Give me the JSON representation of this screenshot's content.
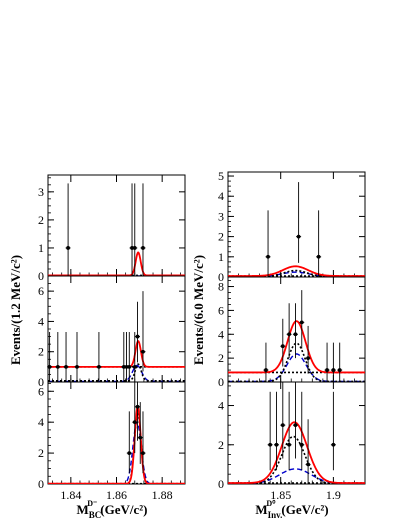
{
  "figure": {
    "ylabel_left": "Events/(1.2 MeV/c²)",
    "ylabel_right": "Events/(6.0 MeV/c²)",
    "xlabel_left": {
      "base": "M",
      "sub": "BC",
      "sup": "D⁻",
      "units": "(GeV/c²)"
    },
    "xlabel_right": {
      "base": "M",
      "sub": "Inv.",
      "sup": "D⁰",
      "units": "(GeV/c²)"
    },
    "colors": {
      "total_fit": "#ff0000",
      "component_1": "#000000",
      "component_2": "#0000cc",
      "background": "#000000",
      "data": "#000000"
    }
  },
  "chart_data": [
    {
      "type": "scatter",
      "column": "left",
      "row": 1,
      "xlim": [
        1.83,
        1.89
      ],
      "ylim": [
        0,
        3.6
      ],
      "xticks": [
        1.84,
        1.86,
        1.88
      ],
      "xticklabels": [],
      "yticks": [
        0,
        1,
        2,
        3
      ],
      "yticklabels": [
        "0",
        "1",
        "2",
        "3"
      ],
      "points": [
        {
          "x": 1.8388,
          "y": 1,
          "lo": 0,
          "hi": 3.3
        },
        {
          "x": 1.8668,
          "y": 1,
          "lo": 0,
          "hi": 3.3
        },
        {
          "x": 1.868,
          "y": 1,
          "lo": 0,
          "hi": 3.3
        },
        {
          "x": 1.8716,
          "y": 1,
          "lo": 0,
          "hi": 3.3
        }
      ],
      "curves": {
        "total": {
          "mean": 1.8695,
          "sigma": 0.0011,
          "amp": 0.82,
          "bg": 0.02
        },
        "signal_1": {
          "mean": 1.8695,
          "sigma": 0.0011,
          "amp": 0.0,
          "bg": 0.0
        },
        "signal_2": {
          "mean": 1.8695,
          "sigma": 0.0011,
          "amp": 0.0,
          "bg": 0.0
        }
      },
      "grid": false
    },
    {
      "type": "scatter",
      "column": "left",
      "row": 2,
      "xlim": [
        1.83,
        1.89
      ],
      "ylim": [
        0,
        7
      ],
      "xticks": [
        1.84,
        1.86,
        1.88
      ],
      "xticklabels": [],
      "yticks": [
        0,
        2,
        4,
        6
      ],
      "yticklabels": [
        "0",
        "2",
        "4",
        "6"
      ],
      "points": [
        {
          "x": 1.8307,
          "y": 1,
          "lo": 0,
          "hi": 3.3
        },
        {
          "x": 1.8343,
          "y": 1,
          "lo": 0,
          "hi": 3.3
        },
        {
          "x": 1.8379,
          "y": 1,
          "lo": 0,
          "hi": 3.3
        },
        {
          "x": 1.8427,
          "y": 1,
          "lo": 0,
          "hi": 3.3
        },
        {
          "x": 1.8523,
          "y": 1,
          "lo": 0,
          "hi": 3.3
        },
        {
          "x": 1.8632,
          "y": 1,
          "lo": 0,
          "hi": 3.3
        },
        {
          "x": 1.8644,
          "y": 1,
          "lo": 0,
          "hi": 3.3
        },
        {
          "x": 1.8656,
          "y": 1,
          "lo": 0,
          "hi": 3.3
        },
        {
          "x": 1.868,
          "y": 1,
          "lo": 0,
          "hi": 3.3
        },
        {
          "x": 1.8692,
          "y": 3,
          "lo": 1.3,
          "hi": 5.3
        },
        {
          "x": 1.8716,
          "y": 2,
          "lo": 0.7,
          "hi": 6.0
        }
      ],
      "curves": {
        "total": {
          "mean": 1.8695,
          "sigma": 0.0012,
          "amp": 1.7,
          "bg": 1.0
        },
        "signal_1": {
          "mean": 1.8695,
          "sigma": 0.0013,
          "amp": 1.1,
          "bg": 0.08
        },
        "signal_2": {
          "mean": 1.869,
          "sigma": 0.002,
          "amp": 1.05,
          "bg": 0.04
        }
      },
      "grid": false
    },
    {
      "type": "scatter",
      "column": "left",
      "row": 3,
      "xlim": [
        1.83,
        1.89
      ],
      "ylim": [
        0,
        6.6
      ],
      "xticks": [
        1.84,
        1.86,
        1.88
      ],
      "xticklabels": [
        "1.84",
        "1.86",
        "1.88"
      ],
      "yticks": [
        0,
        2,
        4,
        6
      ],
      "yticklabels": [
        "0",
        "2",
        "4",
        "6"
      ],
      "points": [
        {
          "x": 1.8656,
          "y": 2,
          "lo": 0.7,
          "hi": 4.7
        },
        {
          "x": 1.868,
          "y": 4,
          "lo": 2.0,
          "hi": 6.6
        },
        {
          "x": 1.8692,
          "y": 5,
          "lo": 2.8,
          "hi": 6.6
        },
        {
          "x": 1.8704,
          "y": 3,
          "lo": 1.3,
          "hi": 5.3
        },
        {
          "x": 1.8716,
          "y": 2,
          "lo": 0.7,
          "hi": 4.7
        }
      ],
      "curves": {
        "total": {
          "mean": 1.8693,
          "sigma": 0.0013,
          "amp": 5.0,
          "bg": 0.02
        },
        "signal_1": {
          "mean": 1.8693,
          "sigma": 0.0014,
          "amp": 4.6,
          "bg": 0.0
        },
        "signal_2": {
          "mean": 1.869,
          "sigma": 0.0018,
          "amp": 4.0,
          "bg": 0.0
        }
      },
      "grid": false
    },
    {
      "type": "scatter",
      "column": "right",
      "row": 1,
      "xlim": [
        1.8,
        1.93
      ],
      "ylim": [
        0,
        5.2
      ],
      "xticks": [
        1.85,
        1.9
      ],
      "xticklabels": [],
      "yticks": [
        0,
        1,
        2,
        3,
        4,
        5
      ],
      "yticklabels": [
        "0",
        "1",
        "2",
        "3",
        "4",
        "5"
      ],
      "points": [
        {
          "x": 1.838,
          "y": 1,
          "lo": 0,
          "hi": 3.3
        },
        {
          "x": 1.867,
          "y": 2,
          "lo": 0.7,
          "hi": 4.7
        },
        {
          "x": 1.886,
          "y": 1,
          "lo": 0,
          "hi": 3.3
        }
      ],
      "curves": {
        "total": {
          "mean": 1.864,
          "sigma": 0.012,
          "amp": 0.48,
          "bg": 0.05
        },
        "signal_1": {
          "mean": 1.864,
          "sigma": 0.011,
          "amp": 0.3,
          "bg": 0.02
        },
        "signal_2": {
          "mean": 1.864,
          "sigma": 0.013,
          "amp": 0.22,
          "bg": 0.02
        }
      },
      "grid": false
    },
    {
      "type": "scatter",
      "column": "right",
      "row": 2,
      "xlim": [
        1.8,
        1.93
      ],
      "ylim": [
        0,
        8.8
      ],
      "xticks": [
        1.85,
        1.9
      ],
      "xticklabels": [],
      "yticks": [
        0,
        2,
        4,
        6,
        8
      ],
      "yticklabels": [
        "0",
        "2",
        "4",
        "6",
        "8"
      ],
      "points": [
        {
          "x": 1.836,
          "y": 1,
          "lo": 0,
          "hi": 3.3
        },
        {
          "x": 1.852,
          "y": 3,
          "lo": 1.3,
          "hi": 5.3
        },
        {
          "x": 1.858,
          "y": 4,
          "lo": 2.0,
          "hi": 6.6
        },
        {
          "x": 1.864,
          "y": 4,
          "lo": 2.0,
          "hi": 6.6
        },
        {
          "x": 1.87,
          "y": 5,
          "lo": 2.8,
          "hi": 7.7
        },
        {
          "x": 1.876,
          "y": 2,
          "lo": 0.7,
          "hi": 4.7
        },
        {
          "x": 1.894,
          "y": 1,
          "lo": 0,
          "hi": 3.3
        },
        {
          "x": 1.9,
          "y": 1,
          "lo": 0,
          "hi": 3.3
        },
        {
          "x": 1.906,
          "y": 1,
          "lo": 0,
          "hi": 3.3
        }
      ],
      "curves": {
        "total": {
          "mean": 1.865,
          "sigma": 0.0085,
          "amp": 4.3,
          "bg": 0.8
        },
        "signal_1": {
          "mean": 1.865,
          "sigma": 0.008,
          "amp": 3.2,
          "bg": 0.05
        },
        "signal_2": {
          "mean": 1.865,
          "sigma": 0.009,
          "amp": 2.3,
          "bg": 0.05
        }
      },
      "grid": false
    },
    {
      "type": "scatter",
      "column": "right",
      "row": 3,
      "xlim": [
        1.8,
        1.93
      ],
      "ylim": [
        0,
        5.2
      ],
      "xticks": [
        1.85,
        1.9
      ],
      "xticklabels": [
        "1.85",
        "1.9"
      ],
      "yticks": [
        0,
        2,
        4
      ],
      "yticklabels": [
        "0",
        "2",
        "4"
      ],
      "points": [
        {
          "x": 1.84,
          "y": 2,
          "lo": 0.7,
          "hi": 4.7
        },
        {
          "x": 1.846,
          "y": 2,
          "lo": 0.7,
          "hi": 4.7
        },
        {
          "x": 1.852,
          "y": 3,
          "lo": 1.3,
          "hi": 5.2
        },
        {
          "x": 1.858,
          "y": 2,
          "lo": 0.7,
          "hi": 4.7
        },
        {
          "x": 1.864,
          "y": 3,
          "lo": 1.3,
          "hi": 5.2
        },
        {
          "x": 1.87,
          "y": 2,
          "lo": 0.7,
          "hi": 4.7
        },
        {
          "x": 1.876,
          "y": 1,
          "lo": 0,
          "hi": 3.3
        },
        {
          "x": 1.9,
          "y": 2,
          "lo": 0.7,
          "hi": 4.7
        }
      ],
      "curves": {
        "total": {
          "mean": 1.863,
          "sigma": 0.012,
          "amp": 3.1,
          "bg": 0.05
        },
        "signal_1": {
          "mean": 1.862,
          "sigma": 0.011,
          "amp": 2.4,
          "bg": 0.02
        },
        "signal_2": {
          "mean": 1.864,
          "sigma": 0.015,
          "amp": 0.75,
          "bg": 0.02
        }
      },
      "grid": false
    }
  ]
}
